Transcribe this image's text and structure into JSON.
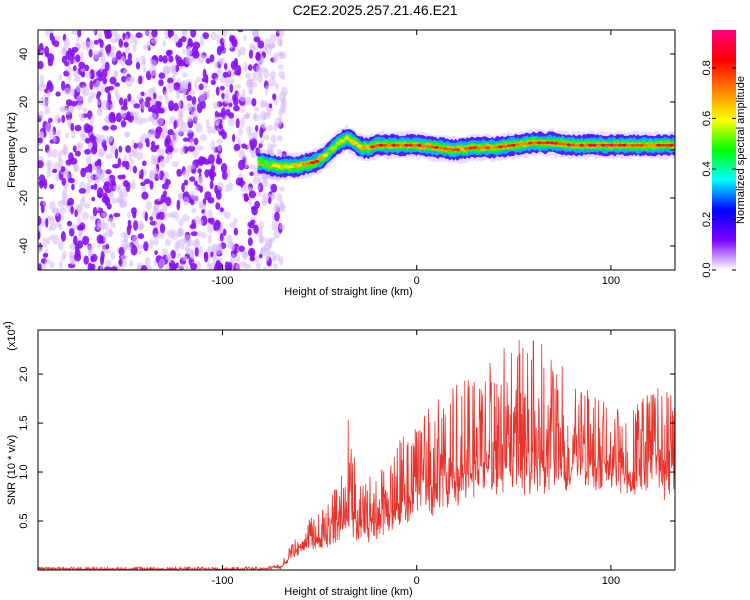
{
  "title": "C2E2.2025.257.21.46.E21",
  "chart_data": [
    {
      "type": "heatmap",
      "xlabel": "Height of straight line (km)",
      "ylabel": "Frequency (Hz)",
      "xlim": [
        -195,
        133
      ],
      "ylim": [
        -50,
        50
      ],
      "xticks": [
        -100,
        0,
        100
      ],
      "yticks": [
        -40,
        -20,
        0,
        20,
        40
      ],
      "colorbar": {
        "label": "Normalized spectral amplitude",
        "range": [
          0,
          0.95
        ],
        "ticks": [
          "0.0",
          "0.2",
          "0.4",
          "0.6",
          "0.8"
        ],
        "tick_values": [
          0.0,
          0.2,
          0.4,
          0.6,
          0.8
        ],
        "colormap": [
          "#ffffff",
          "#7b00ff",
          "#0000ff",
          "#00ffff",
          "#00ff00",
          "#ffff00",
          "#ff8000",
          "#ff0000",
          "#ff0080"
        ]
      },
      "noise_region": {
        "x_from": -195,
        "x_to": -80,
        "amplitude": 0.1
      },
      "tone_track": {
        "x": [
          -82,
          -76,
          -70,
          -64,
          -58,
          -52,
          -48,
          -44,
          -40,
          -36,
          -32,
          -28,
          -24,
          -20,
          -12,
          0,
          10,
          20,
          30,
          40,
          50,
          60,
          70,
          80,
          90,
          100,
          110,
          120,
          133
        ],
        "y": [
          -5,
          -6,
          -7,
          -7,
          -6,
          -5,
          -3,
          0,
          3,
          5,
          3,
          1,
          1,
          2,
          2,
          2,
          1,
          0,
          1,
          1,
          2,
          3,
          3,
          2,
          2,
          2,
          2,
          2,
          2
        ],
        "peak_amplitude": [
          0.45,
          0.55,
          0.65,
          0.7,
          0.8,
          0.85,
          0.6,
          0.55,
          0.55,
          0.6,
          0.65,
          0.7,
          0.8,
          0.85,
          0.85,
          0.9,
          0.85,
          0.8,
          0.85,
          0.8,
          0.85,
          0.85,
          0.9,
          0.85,
          0.9,
          0.9,
          0.85,
          0.85,
          0.85
        ]
      }
    },
    {
      "type": "line",
      "xlabel": "Height of straight line (km)",
      "ylabel": "SNR (10 * v/v)",
      "y_multiplier": "(x10",
      "y_multiplier_exp": "4",
      "xlim": [
        -195,
        133
      ],
      "ylim": [
        0,
        24500
      ],
      "xticks": [
        -100,
        0,
        100
      ],
      "yticks": [
        0.5,
        1.0,
        1.5,
        2.0
      ],
      "ytick_labels": [
        "0.5",
        "1.0",
        "1.5",
        "2.0"
      ],
      "color": "#e8342d",
      "envelope": {
        "x": [
          -195,
          -80,
          -70,
          -60,
          -50,
          -40,
          -35,
          -30,
          -20,
          -10,
          0,
          10,
          20,
          30,
          40,
          50,
          60,
          70,
          80,
          90,
          100,
          110,
          120,
          133
        ],
        "low": [
          0,
          0,
          100,
          1500,
          2000,
          2500,
          3000,
          2500,
          3000,
          4000,
          5000,
          5500,
          6000,
          7000,
          7000,
          7500,
          7500,
          8000,
          8000,
          8000,
          8000,
          7500,
          7000,
          7000
        ],
        "high": [
          300,
          300,
          600,
          4500,
          6000,
          9000,
          16000,
          9000,
          10000,
          13000,
          15000,
          18000,
          19000,
          20000,
          22000,
          23500,
          24000,
          22000,
          20000,
          19000,
          17000,
          16000,
          19000,
          18000
        ],
        "center": [
          200,
          200,
          300,
          2500,
          3500,
          5000,
          6000,
          5000,
          6000,
          8000,
          10000,
          11000,
          12000,
          13000,
          14000,
          14000,
          14000,
          13500,
          13000,
          13000,
          12500,
          12000,
          12500,
          12000
        ]
      }
    }
  ]
}
